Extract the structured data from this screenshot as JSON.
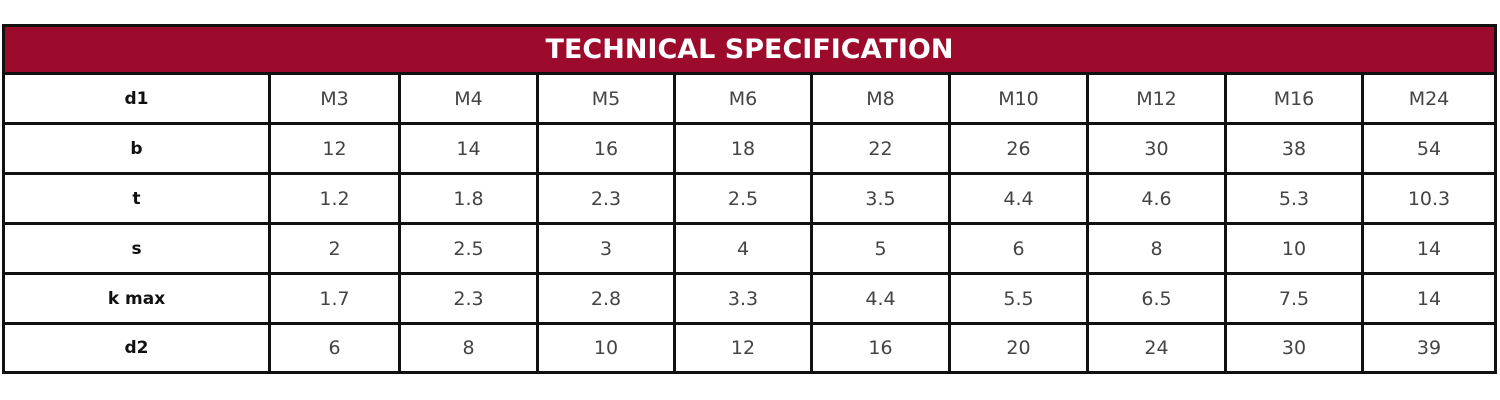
{
  "table": {
    "title": "TECHNICAL SPECIFICATION",
    "rows": [
      [
        "d1",
        "M3",
        "M4",
        "M5",
        "M6",
        "M8",
        "M10",
        "M12",
        "M16",
        "M24"
      ],
      [
        "b",
        "12",
        "14",
        "16",
        "18",
        "22",
        "26",
        "30",
        "38",
        "54"
      ],
      [
        "t",
        "1.2",
        "1.8",
        "2.3",
        "2.5",
        "3.5",
        "4.4",
        "4.6",
        "5.3",
        "10.3"
      ],
      [
        "s",
        "2",
        "2.5",
        "3",
        "4",
        "5",
        "6",
        "8",
        "10",
        "14"
      ],
      [
        "k max",
        "1.7",
        "2.3",
        "2.8",
        "3.3",
        "4.4",
        "5.5",
        "6.5",
        "7.5",
        "14"
      ],
      [
        "d2",
        "6",
        "8",
        "10",
        "12",
        "16",
        "20",
        "24",
        "30",
        "39"
      ]
    ]
  }
}
